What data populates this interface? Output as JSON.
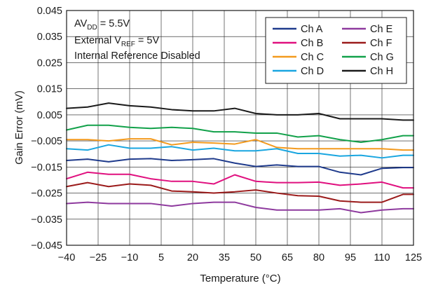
{
  "chart_data": {
    "type": "line",
    "title": "",
    "xlabel": "Temperature (°C)",
    "ylabel": "Gain Error (mV)",
    "xlim": [
      -40,
      125
    ],
    "ylim": [
      -0.045,
      0.045
    ],
    "x_ticks": [
      -40,
      -25,
      -10,
      5,
      20,
      35,
      50,
      65,
      80,
      95,
      110,
      125
    ],
    "x_tick_labels": [
      "−40",
      "−25",
      "−10",
      "5",
      "20",
      "35",
      "50",
      "65",
      "80",
      "95",
      "110",
      "125"
    ],
    "y_ticks": [
      0.045,
      0.035,
      0.025,
      0.015,
      0.005,
      -0.005,
      -0.015,
      -0.025,
      -0.035,
      -0.045
    ],
    "y_tick_labels": [
      "0.045",
      "0.035",
      "0.025",
      "0.015",
      "0.005",
      "−0.005",
      "−0.015",
      "−0.025",
      "−0.035",
      "−0.045"
    ],
    "grid": true,
    "legend_position": "top-right",
    "annotation": {
      "line1": {
        "base": "AV",
        "sub": "DD",
        "rest": " = 5.5V"
      },
      "line2": {
        "base": "External V",
        "sub": "REF",
        "rest": " = 5V"
      },
      "line3": "Internal Reference Disabled"
    },
    "x": [
      -40,
      -30,
      -20,
      -10,
      0,
      10,
      20,
      30,
      40,
      50,
      60,
      70,
      80,
      90,
      100,
      110,
      120,
      125
    ],
    "series": [
      {
        "name": "Ch A",
        "color": "#1f3b8c",
        "values": [
          -0.0125,
          -0.012,
          -0.013,
          -0.012,
          -0.0118,
          -0.0125,
          -0.0122,
          -0.0118,
          -0.0135,
          -0.0148,
          -0.0142,
          -0.0148,
          -0.0148,
          -0.017,
          -0.018,
          -0.0155,
          -0.0152,
          -0.0152
        ]
      },
      {
        "name": "Ch B",
        "color": "#e0107f",
        "values": [
          -0.0195,
          -0.017,
          -0.0178,
          -0.0178,
          -0.0195,
          -0.0205,
          -0.0205,
          -0.0215,
          -0.018,
          -0.0205,
          -0.021,
          -0.021,
          -0.0208,
          -0.022,
          -0.0215,
          -0.0208,
          -0.023,
          -0.023
        ]
      },
      {
        "name": "Ch C",
        "color": "#f39a1e",
        "values": [
          -0.0045,
          -0.0045,
          -0.005,
          -0.0042,
          -0.0042,
          -0.0065,
          -0.0055,
          -0.0058,
          -0.0062,
          -0.0045,
          -0.0075,
          -0.008,
          -0.008,
          -0.008,
          -0.008,
          -0.008,
          -0.0085,
          -0.0085
        ]
      },
      {
        "name": "Ch D",
        "color": "#19a6e0",
        "values": [
          -0.008,
          -0.0085,
          -0.0065,
          -0.0078,
          -0.0078,
          -0.0072,
          -0.0085,
          -0.0078,
          -0.0088,
          -0.0088,
          -0.008,
          -0.0098,
          -0.0098,
          -0.0108,
          -0.0105,
          -0.0115,
          -0.0105,
          -0.0105
        ]
      },
      {
        "name": "Ch E",
        "color": "#8e3a9e",
        "values": [
          -0.029,
          -0.0285,
          -0.029,
          -0.029,
          -0.029,
          -0.03,
          -0.029,
          -0.0285,
          -0.0285,
          -0.0305,
          -0.0315,
          -0.0315,
          -0.0315,
          -0.031,
          -0.0325,
          -0.0315,
          -0.031,
          -0.031
        ]
      },
      {
        "name": "Ch F",
        "color": "#9b1b1b",
        "values": [
          -0.0225,
          -0.021,
          -0.0225,
          -0.0215,
          -0.022,
          -0.0242,
          -0.0245,
          -0.025,
          -0.0245,
          -0.0238,
          -0.025,
          -0.026,
          -0.0262,
          -0.028,
          -0.0285,
          -0.0285,
          -0.0255,
          -0.0255
        ]
      },
      {
        "name": "Ch G",
        "color": "#12a14a",
        "values": [
          -0.0008,
          0.001,
          0.001,
          0.0002,
          -0.0002,
          0.0002,
          -0.0002,
          -0.0015,
          -0.0015,
          -0.002,
          -0.002,
          -0.0035,
          -0.003,
          -0.0045,
          -0.0055,
          -0.0045,
          -0.003,
          -0.003
        ]
      },
      {
        "name": "Ch H",
        "color": "#1a1a1a",
        "values": [
          0.0075,
          0.008,
          0.0095,
          0.0085,
          0.008,
          0.007,
          0.0065,
          0.0065,
          0.0075,
          0.0055,
          0.005,
          0.005,
          0.0055,
          0.0035,
          0.0035,
          0.0035,
          0.003,
          0.003
        ]
      }
    ]
  }
}
